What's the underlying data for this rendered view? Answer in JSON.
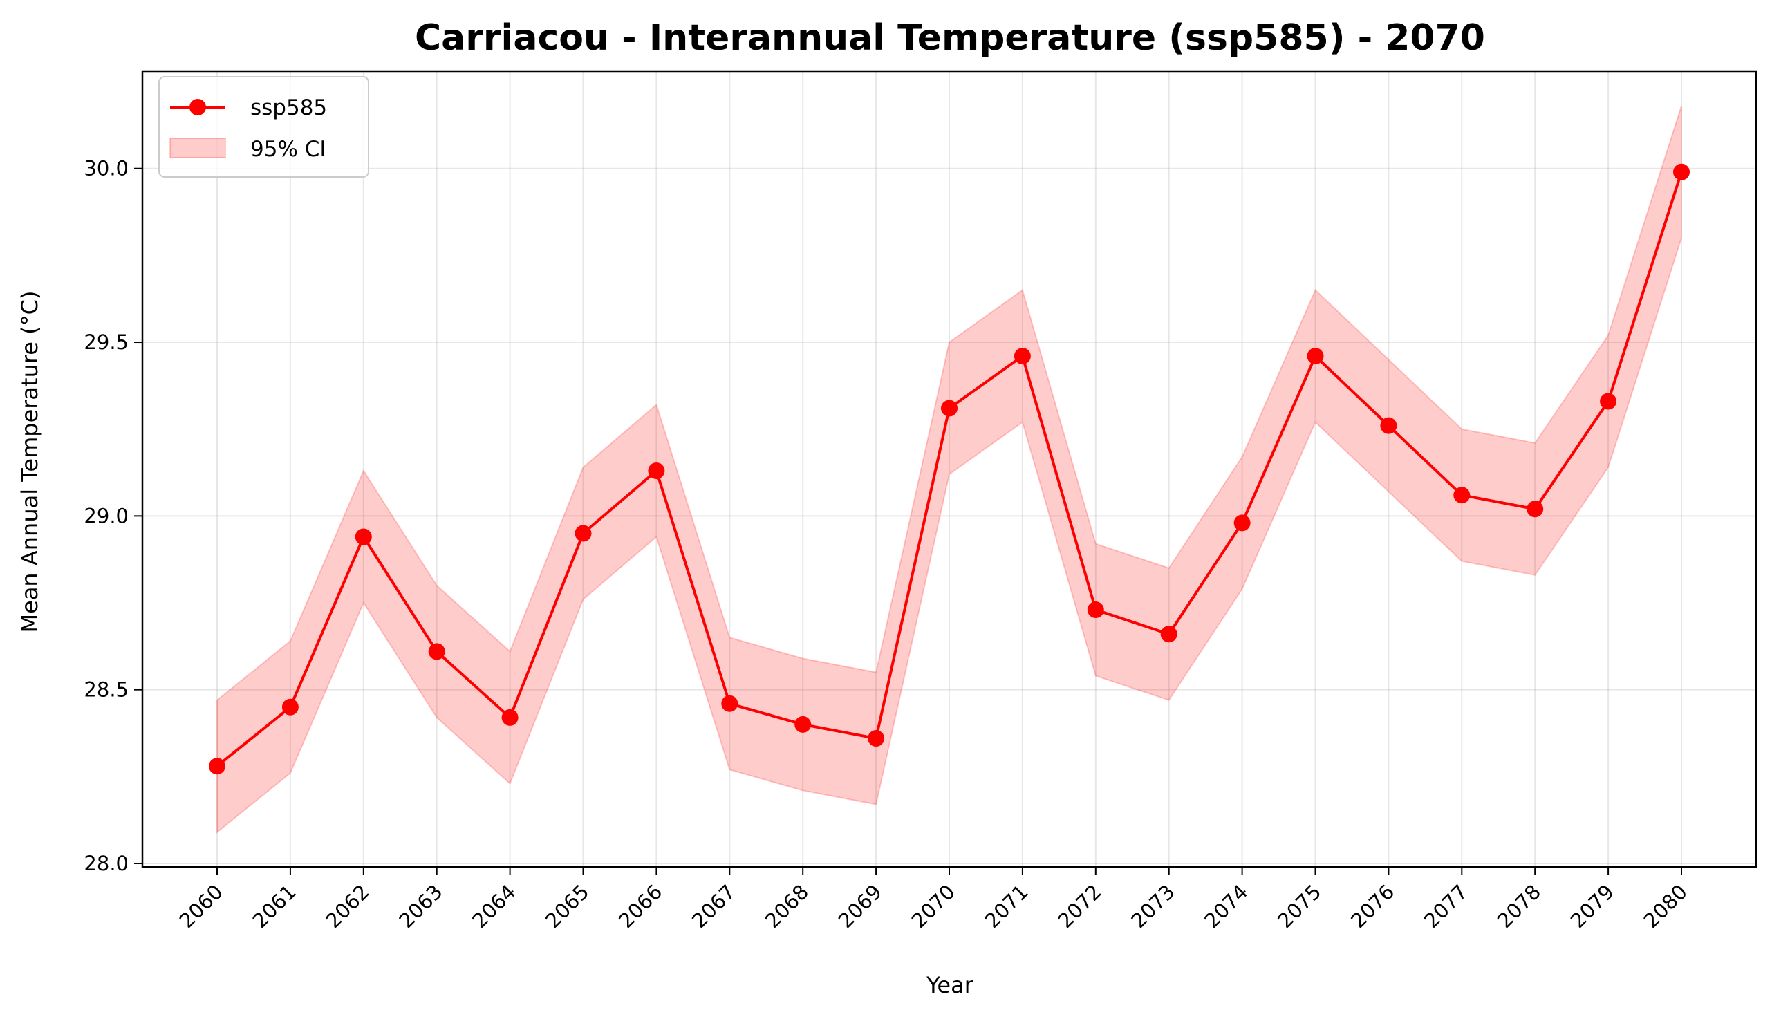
{
  "chart_data": {
    "type": "line",
    "title": "Carriacou - Interannual Temperature (ssp585) - 2070",
    "xlabel": "Year",
    "ylabel": "Mean Annual Temperature (°C)",
    "x": [
      "2060",
      "2061",
      "2062",
      "2063",
      "2064",
      "2065",
      "2066",
      "2067",
      "2068",
      "2069",
      "2070",
      "2071",
      "2072",
      "2073",
      "2074",
      "2075",
      "2076",
      "2077",
      "2078",
      "2079",
      "2080"
    ],
    "series": [
      {
        "name": "ssp585",
        "color": "#ff0000",
        "values": [
          28.28,
          28.45,
          28.94,
          28.61,
          28.42,
          28.95,
          29.13,
          28.46,
          28.4,
          28.36,
          29.31,
          29.46,
          28.73,
          28.66,
          28.98,
          29.46,
          29.26,
          29.06,
          29.02,
          29.33,
          29.99
        ]
      }
    ],
    "ci": {
      "name": "95% CI",
      "color": "#ff0000",
      "lower": [
        28.09,
        28.26,
        28.75,
        28.42,
        28.23,
        28.76,
        28.94,
        28.27,
        28.21,
        28.17,
        29.12,
        29.27,
        28.54,
        28.47,
        28.79,
        29.27,
        29.07,
        28.87,
        28.83,
        29.14,
        29.8
      ],
      "upper": [
        28.47,
        28.64,
        29.13,
        28.8,
        28.61,
        29.14,
        29.32,
        28.65,
        28.59,
        28.55,
        29.5,
        29.65,
        28.92,
        28.85,
        29.17,
        29.65,
        29.45,
        29.25,
        29.21,
        29.52,
        30.18
      ]
    },
    "yticks": [
      "28.0",
      "28.5",
      "29.0",
      "29.5",
      "30.0"
    ],
    "ylim": [
      27.99,
      30.28
    ],
    "grid": true,
    "legend_position": "top-left"
  }
}
